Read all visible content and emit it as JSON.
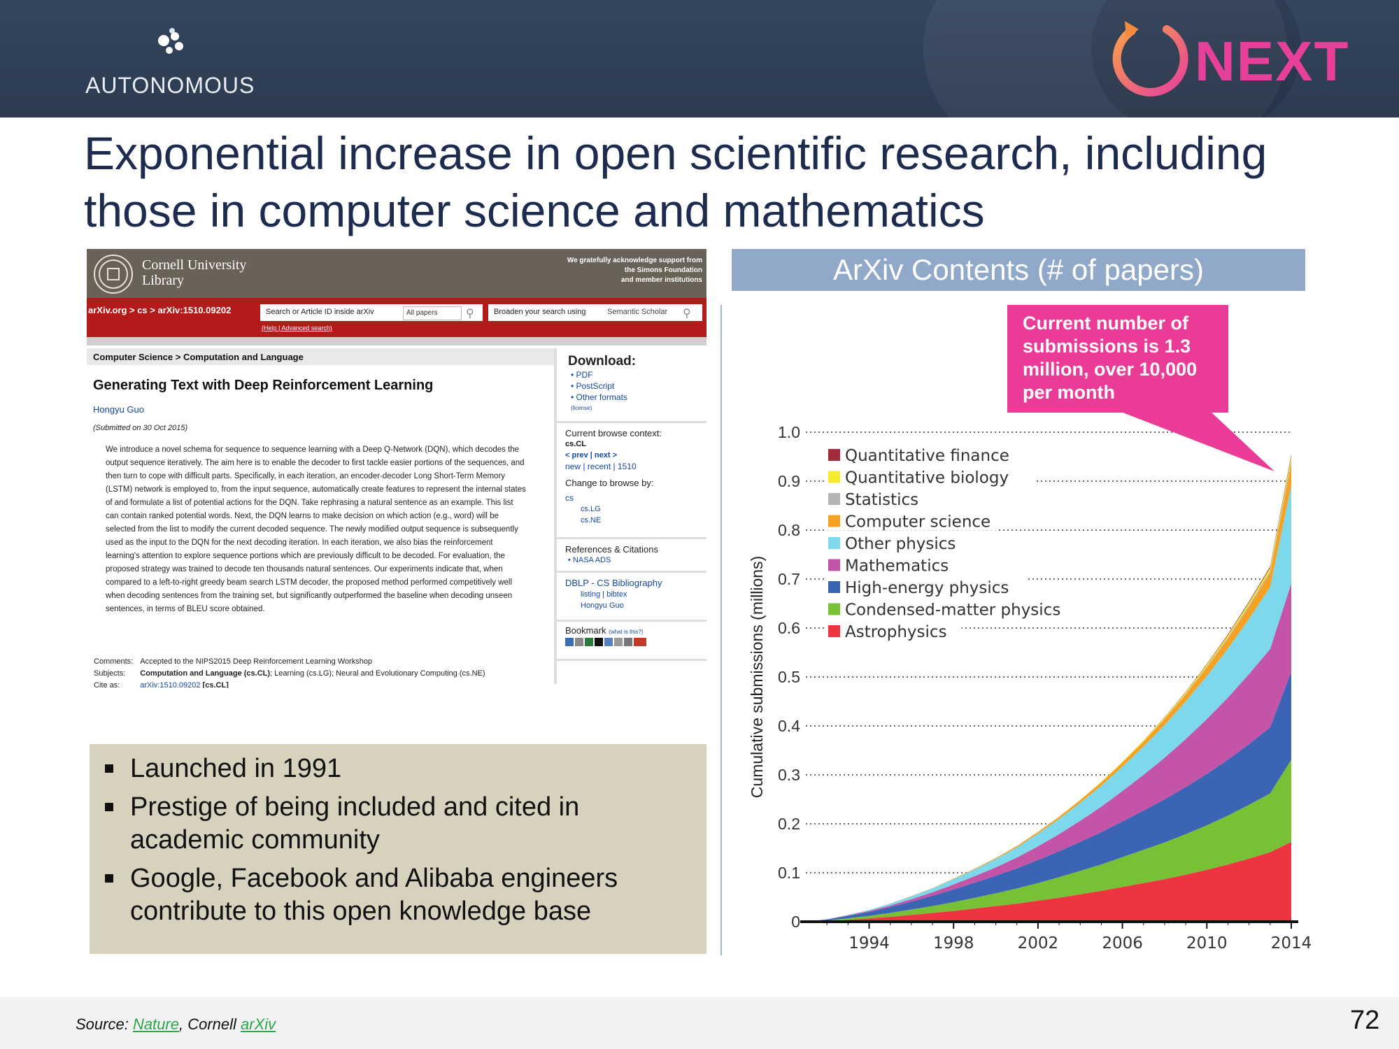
{
  "header": {
    "logo_text": "AUTONOMOUS",
    "next_text": "NEXT",
    "colors": {
      "bar": "#2f3f56",
      "next_pink": "#e6409b",
      "next_orange": "#f28c3c"
    }
  },
  "title": {
    "line1": "Exponential increase in open scientific research, including",
    "line2": "those in computer science and mathematics"
  },
  "arxiv_screenshot": {
    "university": "Cornell University",
    "library": "Library",
    "acknowledge": [
      "We gratefully acknowledge support from",
      "the Simons Foundation",
      "and member institutions"
    ],
    "breadcrumb": "arXiv.org > cs > arXiv:1510.09202",
    "search_placeholder": "Search or Article ID inside arXiv",
    "search_scope": "All papers",
    "broaden_label": "Broaden your search using",
    "broaden_service": "Semantic Scholar",
    "help_links": "(Help | Advanced search)",
    "subject_header": "Computer Science > Computation and Language",
    "paper_title": "Generating Text with Deep Reinforcement Learning",
    "author": "Hongyu Guo",
    "submitted": "(Submitted on 30 Oct 2015)",
    "abstract": "We introduce a novel schema for sequence to sequence learning with a Deep Q-Network (DQN), which decodes the output sequence iteratively. The aim here is to enable the decoder to first tackle easier portions of the sequences, and then turn to cope with difficult parts. Specifically, in each iteration, an encoder-decoder Long Short-Term Memory (LSTM) network is employed to, from the input sequence, automatically create features to represent the internal states of and formulate a list of potential actions for the DQN. Take rephrasing a natural sentence as an example. This list can contain ranked potential words. Next, the DQN learns to make decision on which action (e.g., word) will be selected from the list to modify the current decoded sequence. The newly modified output sequence is subsequently used as the input to the DQN for the next decoding iteration. In each iteration, we also bias the reinforcement learning's attention to explore sequence portions which are previously difficult to be decoded. For evaluation, the proposed strategy was trained to decode ten thousands natural sentences. Our experiments indicate that, when compared to a left-to-right greedy beam search LSTM decoder, the proposed method performed competitively well when decoding sentences from the training set, but significantly outperformed the baseline when decoding unseen sentences, in terms of BLEU score obtained.",
    "meta": {
      "comments_label": "Comments:",
      "comments": "Accepted to the NIPS2015 Deep Reinforcement Learning Workshop",
      "subjects_label": "Subjects:",
      "subjects_main": "Computation and Language (cs.CL)",
      "subjects_rest": "; Learning (cs.LG); Neural and Evolutionary Computing (cs.NE)",
      "cite_label": "Cite as:",
      "cite_id": "arXiv:1510.09202",
      "cite_cat": " [cs.CL]"
    },
    "sidebar": {
      "download_title": "Download:",
      "download_items": [
        "PDF",
        "PostScript",
        "Other formats"
      ],
      "license": "(license)",
      "browse_title": "Current browse context:",
      "browse_ctx": "cs.CL",
      "prev_next": "< prev | next >",
      "new_recent": "new | recent | 1510",
      "change_title": "Change to browse by:",
      "change_cs": "cs",
      "change_items": [
        "cs.LG",
        "cs.NE"
      ],
      "refs_title": "References & Citations",
      "refs_item": "NASA ADS",
      "dblp_title": "DBLP - CS Bibliography",
      "dblp_links": "listing | bibtex",
      "dblp_author": "Hongyu Guo",
      "bookmark_title": "Bookmark",
      "bookmark_what": "(what is this?)"
    }
  },
  "bullets": [
    "Launched in 1991",
    "Prestige of being included and cited in academic community",
    "Google, Facebook and Alibaba engineers contribute to this open knowledge base"
  ],
  "chart_header": "ArXiv Contents (# of papers)",
  "callout": "Current number of submissions is 1.3 million, over 10,000 per month",
  "chart_data": {
    "type": "area",
    "stacked": true,
    "ylabel": "Cumulative submissions (millions)",
    "xlabel": "",
    "xlim": [
      1991,
      2014
    ],
    "ylim": [
      0,
      1.0
    ],
    "x_ticks": [
      1994,
      1998,
      2002,
      2006,
      2010,
      2014
    ],
    "y_ticks": [
      0,
      0.1,
      0.2,
      0.3,
      0.4,
      0.5,
      0.6,
      0.7,
      0.8,
      0.9,
      1.0
    ],
    "y_tick_labels": [
      "0",
      "0.1",
      "0.2",
      "0.3",
      "0.4",
      "0.5",
      "0.6",
      "0.7",
      "0.8",
      "0.9",
      "1.0"
    ],
    "grid": "dotted horizontal",
    "legend_position": "top-left",
    "x": [
      1991,
      1992,
      1993,
      1994,
      1995,
      1996,
      1997,
      1998,
      1999,
      2000,
      2001,
      2002,
      2003,
      2004,
      2005,
      2006,
      2007,
      2008,
      2009,
      2010,
      2011,
      2012,
      2013,
      2014
    ],
    "series": [
      {
        "name": "Astrophysics",
        "color": "#ee3341",
        "values": [
          0.0,
          0.0015,
          0.004,
          0.007,
          0.01,
          0.014,
          0.018,
          0.022,
          0.027,
          0.032,
          0.037,
          0.043,
          0.049,
          0.056,
          0.063,
          0.071,
          0.079,
          0.087,
          0.096,
          0.106,
          0.117,
          0.129,
          0.142,
          0.163
        ]
      },
      {
        "name": "Condensed-matter physics",
        "color": "#79c134",
        "values": [
          0.0,
          0.001,
          0.003,
          0.005,
          0.008,
          0.011,
          0.014,
          0.018,
          0.022,
          0.026,
          0.031,
          0.036,
          0.042,
          0.048,
          0.054,
          0.061,
          0.068,
          0.075,
          0.083,
          0.091,
          0.1,
          0.11,
          0.12,
          0.168
        ]
      },
      {
        "name": "High-energy physics",
        "color": "#3b65b4",
        "values": [
          0.0,
          0.002,
          0.005,
          0.008,
          0.012,
          0.016,
          0.021,
          0.026,
          0.031,
          0.036,
          0.041,
          0.047,
          0.053,
          0.059,
          0.066,
          0.073,
          0.08,
          0.088,
          0.096,
          0.105,
          0.114,
          0.124,
          0.135,
          0.18
        ]
      },
      {
        "name": "Mathematics",
        "color": "#c354a8",
        "values": [
          0.0,
          0.0003,
          0.001,
          0.002,
          0.003,
          0.005,
          0.007,
          0.01,
          0.013,
          0.017,
          0.022,
          0.028,
          0.035,
          0.043,
          0.052,
          0.062,
          0.073,
          0.085,
          0.098,
          0.112,
          0.127,
          0.143,
          0.16,
          0.18
        ]
      },
      {
        "name": "Other physics",
        "color": "#7ed8ec",
        "values": [
          0.0,
          0.0005,
          0.001,
          0.002,
          0.004,
          0.006,
          0.008,
          0.011,
          0.014,
          0.017,
          0.021,
          0.026,
          0.031,
          0.037,
          0.043,
          0.05,
          0.058,
          0.067,
          0.077,
          0.088,
          0.1,
          0.113,
          0.127,
          0.2
        ]
      },
      {
        "name": "Computer science",
        "color": "#f7a122",
        "values": [
          0.0,
          0.0,
          0.0,
          0.0001,
          0.0002,
          0.0004,
          0.0006,
          0.001,
          0.0014,
          0.002,
          0.0026,
          0.0034,
          0.0044,
          0.0055,
          0.0068,
          0.0083,
          0.01,
          0.012,
          0.014,
          0.017,
          0.02,
          0.024,
          0.028,
          0.045
        ]
      },
      {
        "name": "Statistics",
        "color": "#b4b4b4",
        "values": [
          0.0,
          0.0,
          0.0,
          0.0,
          0.0,
          0.0,
          0.0,
          0.0,
          0.0,
          0.0,
          0.0,
          0.0,
          0.0,
          0.0,
          0.0,
          0.0,
          0.0005,
          0.001,
          0.0015,
          0.002,
          0.0028,
          0.0036,
          0.0045,
          0.008
        ]
      },
      {
        "name": "Quantitative biology",
        "color": "#f7ea2b",
        "values": [
          0.0,
          0.0,
          0.0,
          0.0,
          0.0,
          0.0,
          0.0,
          0.0,
          0.0,
          0.0,
          0.0,
          0.0,
          0.0,
          0.0005,
          0.001,
          0.0015,
          0.002,
          0.0026,
          0.0032,
          0.004,
          0.0048,
          0.0056,
          0.0064,
          0.008
        ]
      },
      {
        "name": "Quantitative finance",
        "color": "#a32a3a",
        "values": [
          0.0,
          0.0,
          0.0,
          0.0,
          0.0,
          0.0,
          0.0,
          0.0,
          0.0,
          0.0,
          0.0,
          0.0,
          0.0,
          0.0,
          0.0,
          0.0,
          0.0,
          0.0005,
          0.0009,
          0.0013,
          0.0017,
          0.0021,
          0.0026,
          0.003
        ]
      }
    ],
    "legend_order": [
      "Quantitative finance",
      "Quantitative biology",
      "Statistics",
      "Computer science",
      "Other physics",
      "Mathematics",
      "High-energy physics",
      "Condensed-matter physics",
      "Astrophysics"
    ]
  },
  "footer": {
    "source_prefix": "Source: ",
    "source_link1": "Nature",
    "source_sep": ", Cornell ",
    "source_link2": "arXiv",
    "page_number": "72"
  }
}
